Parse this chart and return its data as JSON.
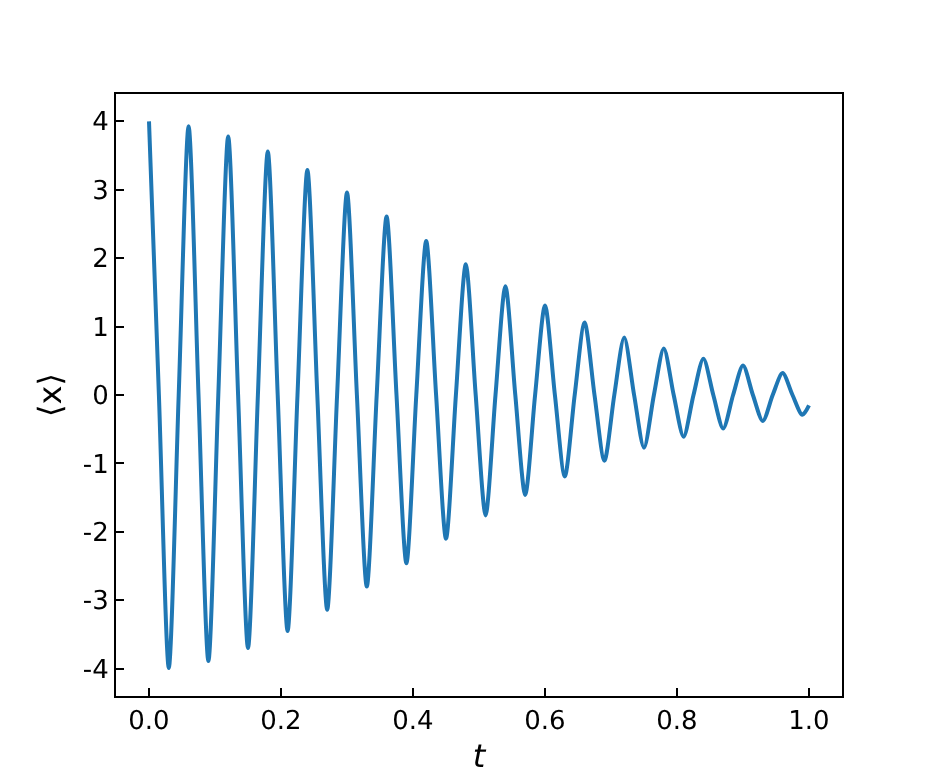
{
  "chart_data": {
    "type": "line",
    "xlabel": "t",
    "ylabel": "⟨x⟩",
    "x": [
      0,
      0.015,
      0.03,
      0.045,
      0.06,
      0.075,
      0.09,
      0.105,
      0.12,
      0.135,
      0.15,
      0.165,
      0.18,
      0.195,
      0.21,
      0.225,
      0.24,
      0.255,
      0.27,
      0.285,
      0.3,
      0.315,
      0.33,
      0.345,
      0.36,
      0.375,
      0.39,
      0.405,
      0.42,
      0.435,
      0.45,
      0.465,
      0.48,
      0.495,
      0.51,
      0.525,
      0.54,
      0.555,
      0.57,
      0.585,
      0.6,
      0.615,
      0.63,
      0.645,
      0.66,
      0.675,
      0.69,
      0.705,
      0.72,
      0.735,
      0.75,
      0.765,
      0.78,
      0.795,
      0.81,
      0.825,
      0.84,
      0.855,
      0.87,
      0.885,
      0.9,
      0.915,
      0.93,
      0.945,
      0.96,
      0.975,
      0.99,
      1.0
    ],
    "series": [
      {
        "color": "#1f77b4",
        "values": [
          4,
          0,
          -3.99,
          0,
          3.93,
          0,
          -3.89,
          0,
          3.78,
          0,
          -3.7,
          0,
          3.56,
          0,
          -3.45,
          0,
          3.29,
          0,
          -3.14,
          0,
          2.96,
          0,
          -2.8,
          0,
          2.61,
          0,
          -2.46,
          0,
          2.25,
          0,
          -2.1,
          0,
          1.91,
          0,
          -1.76,
          0,
          1.59,
          0,
          -1.46,
          0,
          1.31,
          0,
          -1.19,
          0,
          1.06,
          0,
          -0.96,
          0,
          0.84,
          0,
          -0.77,
          0,
          0.68,
          0,
          -0.61,
          0,
          0.53,
          0,
          -0.49,
          0,
          0.43,
          0,
          -0.38,
          0,
          0.32,
          0,
          -0.29,
          -0.15
        ]
      }
    ],
    "xlim": [
      -0.05,
      1.05
    ],
    "ylim": [
      -4.4,
      4.4
    ],
    "xticks": [
      {
        "value": 0,
        "label": "0.0"
      },
      {
        "value": 0.2,
        "label": "0.2"
      },
      {
        "value": 0.4,
        "label": "0.4"
      },
      {
        "value": 0.6,
        "label": "0.6"
      },
      {
        "value": 0.8,
        "label": "0.8"
      },
      {
        "value": 1,
        "label": "1.0"
      }
    ],
    "yticks": [
      -4,
      -3,
      -2,
      -1,
      0,
      1,
      2,
      3,
      4
    ],
    "grid": false,
    "marker": "none",
    "line_style": "solid"
  }
}
